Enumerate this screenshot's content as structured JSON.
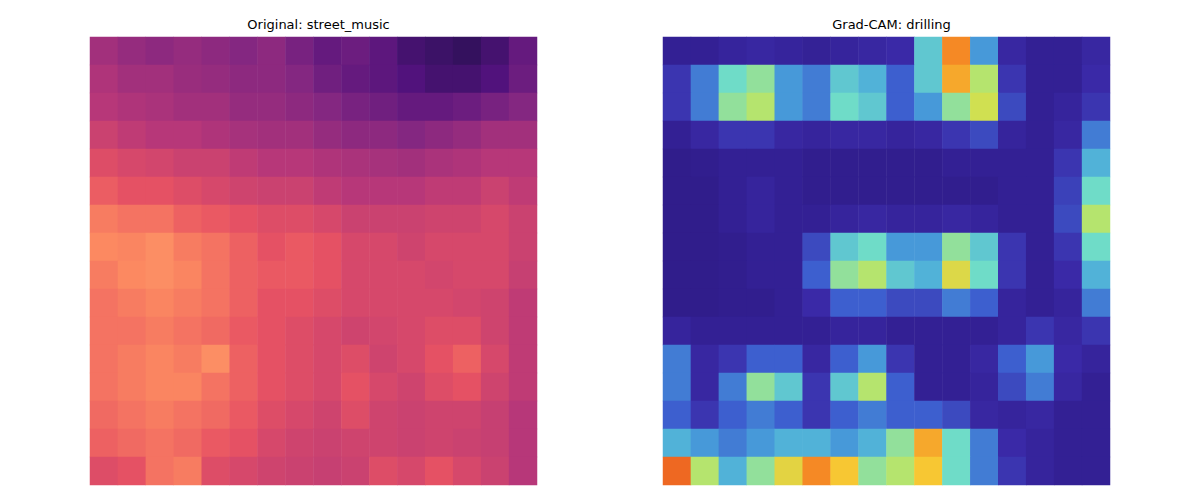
{
  "chart_data": [
    {
      "type": "heatmap",
      "title": "Original: street_music",
      "tick_labels": false,
      "zlim": [
        0,
        1
      ],
      "cells": [
        [
          0.45,
          0.42,
          0.4,
          0.42,
          0.4,
          0.38,
          0.4,
          0.35,
          0.3,
          0.32,
          0.28,
          0.22,
          0.2,
          0.18,
          0.22,
          0.3
        ],
        [
          0.48,
          0.45,
          0.45,
          0.43,
          0.42,
          0.4,
          0.4,
          0.38,
          0.33,
          0.3,
          0.28,
          0.25,
          0.22,
          0.22,
          0.25,
          0.32
        ],
        [
          0.5,
          0.48,
          0.47,
          0.45,
          0.45,
          0.42,
          0.42,
          0.4,
          0.38,
          0.35,
          0.33,
          0.3,
          0.3,
          0.32,
          0.35,
          0.38
        ],
        [
          0.55,
          0.52,
          0.5,
          0.5,
          0.48,
          0.46,
          0.45,
          0.45,
          0.42,
          0.4,
          0.4,
          0.38,
          0.4,
          0.42,
          0.45,
          0.45
        ],
        [
          0.6,
          0.58,
          0.57,
          0.55,
          0.55,
          0.52,
          0.5,
          0.5,
          0.48,
          0.47,
          0.46,
          0.45,
          0.47,
          0.48,
          0.5,
          0.5
        ],
        [
          0.65,
          0.62,
          0.62,
          0.6,
          0.58,
          0.56,
          0.55,
          0.55,
          0.52,
          0.5,
          0.5,
          0.5,
          0.52,
          0.52,
          0.55,
          0.52
        ],
        [
          0.72,
          0.7,
          0.7,
          0.66,
          0.64,
          0.62,
          0.6,
          0.6,
          0.58,
          0.55,
          0.55,
          0.55,
          0.56,
          0.56,
          0.58,
          0.55
        ],
        [
          0.75,
          0.74,
          0.76,
          0.72,
          0.7,
          0.66,
          0.62,
          0.64,
          0.62,
          0.58,
          0.58,
          0.56,
          0.58,
          0.58,
          0.58,
          0.55
        ],
        [
          0.72,
          0.75,
          0.76,
          0.74,
          0.7,
          0.66,
          0.64,
          0.64,
          0.62,
          0.58,
          0.58,
          0.58,
          0.57,
          0.58,
          0.58,
          0.54
        ],
        [
          0.7,
          0.72,
          0.74,
          0.72,
          0.7,
          0.66,
          0.62,
          0.62,
          0.6,
          0.58,
          0.58,
          0.58,
          0.58,
          0.57,
          0.56,
          0.52
        ],
        [
          0.7,
          0.7,
          0.72,
          0.7,
          0.68,
          0.64,
          0.62,
          0.6,
          0.58,
          0.56,
          0.57,
          0.58,
          0.6,
          0.6,
          0.56,
          0.52
        ],
        [
          0.7,
          0.72,
          0.74,
          0.72,
          0.76,
          0.66,
          0.62,
          0.6,
          0.58,
          0.6,
          0.56,
          0.58,
          0.62,
          0.66,
          0.58,
          0.52
        ],
        [
          0.7,
          0.72,
          0.74,
          0.74,
          0.7,
          0.66,
          0.62,
          0.6,
          0.58,
          0.62,
          0.58,
          0.56,
          0.6,
          0.62,
          0.56,
          0.52
        ],
        [
          0.68,
          0.7,
          0.72,
          0.7,
          0.68,
          0.64,
          0.6,
          0.58,
          0.56,
          0.6,
          0.56,
          0.55,
          0.56,
          0.56,
          0.54,
          0.5
        ],
        [
          0.66,
          0.68,
          0.7,
          0.68,
          0.64,
          0.62,
          0.58,
          0.56,
          0.55,
          0.56,
          0.56,
          0.55,
          0.56,
          0.55,
          0.54,
          0.5
        ],
        [
          0.6,
          0.62,
          0.7,
          0.72,
          0.6,
          0.58,
          0.56,
          0.55,
          0.54,
          0.55,
          0.6,
          0.58,
          0.62,
          0.58,
          0.55,
          0.5
        ]
      ]
    },
    {
      "type": "heatmap",
      "title": "Grad-CAM: drilling",
      "tick_labels": false,
      "zlim": [
        0,
        1
      ],
      "cells": [
        [
          0.05,
          0.05,
          0.08,
          0.1,
          0.08,
          0.06,
          0.08,
          0.1,
          0.12,
          0.45,
          0.85,
          0.35,
          0.1,
          0.05,
          0.05,
          0.1
        ],
        [
          0.15,
          0.3,
          0.5,
          0.55,
          0.35,
          0.3,
          0.45,
          0.4,
          0.25,
          0.45,
          0.8,
          0.6,
          0.15,
          0.05,
          0.05,
          0.12
        ],
        [
          0.15,
          0.3,
          0.55,
          0.6,
          0.35,
          0.3,
          0.5,
          0.45,
          0.25,
          0.35,
          0.55,
          0.65,
          0.2,
          0.05,
          0.08,
          0.15
        ],
        [
          0.05,
          0.1,
          0.15,
          0.15,
          0.1,
          0.08,
          0.1,
          0.1,
          0.08,
          0.1,
          0.15,
          0.2,
          0.08,
          0.05,
          0.1,
          0.3
        ],
        [
          0.02,
          0.03,
          0.05,
          0.05,
          0.05,
          0.03,
          0.03,
          0.03,
          0.03,
          0.03,
          0.05,
          0.05,
          0.05,
          0.05,
          0.15,
          0.4
        ],
        [
          0.02,
          0.02,
          0.05,
          0.08,
          0.05,
          0.03,
          0.03,
          0.03,
          0.03,
          0.03,
          0.03,
          0.03,
          0.05,
          0.05,
          0.18,
          0.5
        ],
        [
          0.02,
          0.02,
          0.05,
          0.08,
          0.05,
          0.05,
          0.08,
          0.1,
          0.08,
          0.08,
          0.1,
          0.08,
          0.05,
          0.05,
          0.2,
          0.6
        ],
        [
          0.02,
          0.02,
          0.03,
          0.05,
          0.05,
          0.2,
          0.45,
          0.5,
          0.35,
          0.35,
          0.55,
          0.45,
          0.15,
          0.05,
          0.15,
          0.5
        ],
        [
          0.02,
          0.02,
          0.03,
          0.05,
          0.05,
          0.25,
          0.55,
          0.6,
          0.45,
          0.4,
          0.68,
          0.5,
          0.15,
          0.05,
          0.12,
          0.4
        ],
        [
          0.02,
          0.02,
          0.03,
          0.03,
          0.05,
          0.12,
          0.25,
          0.25,
          0.2,
          0.2,
          0.3,
          0.25,
          0.08,
          0.05,
          0.08,
          0.3
        ],
        [
          0.08,
          0.05,
          0.05,
          0.05,
          0.05,
          0.05,
          0.08,
          0.08,
          0.05,
          0.05,
          0.05,
          0.05,
          0.08,
          0.15,
          0.1,
          0.15
        ],
        [
          0.3,
          0.1,
          0.15,
          0.25,
          0.25,
          0.1,
          0.25,
          0.35,
          0.15,
          0.05,
          0.05,
          0.1,
          0.25,
          0.35,
          0.12,
          0.08
        ],
        [
          0.3,
          0.1,
          0.3,
          0.55,
          0.45,
          0.15,
          0.45,
          0.6,
          0.25,
          0.05,
          0.05,
          0.08,
          0.2,
          0.3,
          0.1,
          0.05
        ],
        [
          0.25,
          0.15,
          0.25,
          0.3,
          0.25,
          0.15,
          0.25,
          0.3,
          0.25,
          0.25,
          0.2,
          0.1,
          0.08,
          0.1,
          0.05,
          0.05
        ],
        [
          0.4,
          0.35,
          0.3,
          0.35,
          0.4,
          0.4,
          0.35,
          0.4,
          0.55,
          0.8,
          0.5,
          0.3,
          0.12,
          0.08,
          0.05,
          0.05
        ],
        [
          0.9,
          0.6,
          0.4,
          0.55,
          0.7,
          0.85,
          0.75,
          0.55,
          0.6,
          0.75,
          0.5,
          0.3,
          0.15,
          0.08,
          0.05,
          0.05
        ]
      ]
    }
  ]
}
